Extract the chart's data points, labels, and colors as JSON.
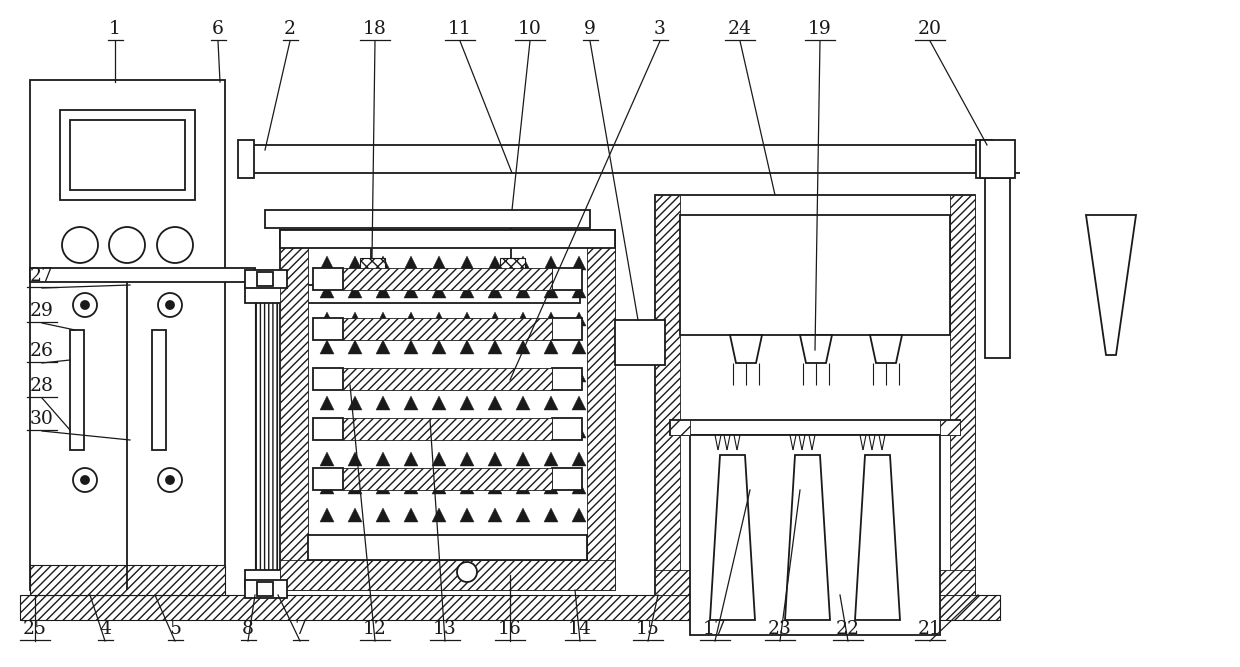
{
  "bg_color": "#ffffff",
  "line_color": "#1a1a1a",
  "fig_width": 12.4,
  "fig_height": 6.67,
  "lw": 1.3
}
